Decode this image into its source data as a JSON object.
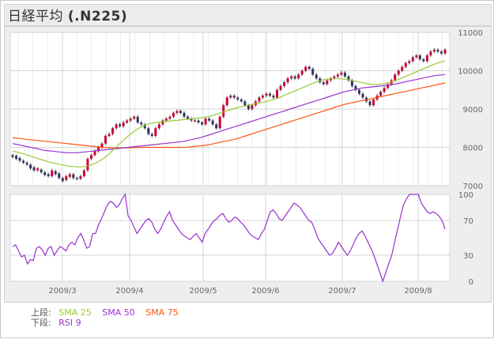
{
  "header": {
    "name": "日経平均",
    "code": "(.N225)"
  },
  "legend": {
    "upper_label": "上段:",
    "lower_label": "下段:",
    "sma25": {
      "label": "SMA 25",
      "color": "#99cc33"
    },
    "sma50": {
      "label": "SMA 50",
      "color": "#9933cc"
    },
    "sma75": {
      "label": "SMA 75",
      "color": "#ff5511"
    },
    "rsi": {
      "label": "RSI 9",
      "color": "#9933cc"
    }
  },
  "colors": {
    "up": "#cc0033",
    "down": "#333366",
    "grid": "#ffffff",
    "plot_bg": "#ffffff"
  },
  "chart_data": [
    {
      "type": "candlestick",
      "panel": "price",
      "x_tick_labels": [
        "2009/3",
        "2009/4",
        "2009/5",
        "2009/6",
        "2009/7",
        "2009/8"
      ],
      "y_tick_labels": [
        "7000",
        "8000",
        "9000",
        "10000",
        "11000"
      ],
      "ylim": [
        7000,
        11000
      ],
      "grid": true,
      "candles": [
        [
          7800,
          7750
        ],
        [
          7780,
          7700
        ],
        [
          7720,
          7650
        ],
        [
          7650,
          7600
        ],
        [
          7600,
          7550
        ],
        [
          7550,
          7450
        ],
        [
          7480,
          7400
        ],
        [
          7400,
          7450
        ],
        [
          7420,
          7350
        ],
        [
          7350,
          7280
        ],
        [
          7300,
          7250
        ],
        [
          7250,
          7400
        ],
        [
          7380,
          7300
        ],
        [
          7320,
          7200
        ],
        [
          7200,
          7120
        ],
        [
          7150,
          7250
        ],
        [
          7230,
          7300
        ],
        [
          7300,
          7200
        ],
        [
          7200,
          7180
        ],
        [
          7180,
          7250
        ],
        [
          7250,
          7400
        ],
        [
          7400,
          7700
        ],
        [
          7700,
          7800
        ],
        [
          7800,
          7900
        ],
        [
          7900,
          8000
        ],
        [
          8000,
          8100
        ],
        [
          8100,
          8300
        ],
        [
          8300,
          8350
        ],
        [
          8350,
          8500
        ],
        [
          8500,
          8600
        ],
        [
          8600,
          8550
        ],
        [
          8550,
          8650
        ],
        [
          8650,
          8700
        ],
        [
          8700,
          8750
        ],
        [
          8750,
          8800
        ],
        [
          8800,
          8650
        ],
        [
          8650,
          8600
        ],
        [
          8600,
          8500
        ],
        [
          8500,
          8350
        ],
        [
          8350,
          8300
        ],
        [
          8300,
          8500
        ],
        [
          8500,
          8600
        ],
        [
          8600,
          8700
        ],
        [
          8700,
          8750
        ],
        [
          8750,
          8800
        ],
        [
          8800,
          8900
        ],
        [
          8900,
          8950
        ],
        [
          8950,
          8900
        ],
        [
          8900,
          8800
        ],
        [
          8800,
          8750
        ],
        [
          8750,
          8700
        ],
        [
          8700,
          8700
        ],
        [
          8700,
          8650
        ],
        [
          8650,
          8600
        ],
        [
          8600,
          8750
        ],
        [
          8750,
          8700
        ],
        [
          8700,
          8600
        ],
        [
          8600,
          8500
        ],
        [
          8500,
          8800
        ],
        [
          8800,
          9100
        ],
        [
          9100,
          9300
        ],
        [
          9300,
          9350
        ],
        [
          9350,
          9300
        ],
        [
          9300,
          9250
        ],
        [
          9250,
          9200
        ],
        [
          9200,
          9100
        ],
        [
          9100,
          9000
        ],
        [
          9000,
          9100
        ],
        [
          9100,
          9200
        ],
        [
          9200,
          9300
        ],
        [
          9300,
          9350
        ],
        [
          9350,
          9400
        ],
        [
          9400,
          9350
        ],
        [
          9350,
          9300
        ],
        [
          9300,
          9500
        ],
        [
          9500,
          9600
        ],
        [
          9600,
          9700
        ],
        [
          9700,
          9800
        ],
        [
          9800,
          9850
        ],
        [
          9850,
          9800
        ],
        [
          9800,
          9900
        ],
        [
          9900,
          10000
        ],
        [
          10000,
          10100
        ],
        [
          10100,
          10050
        ],
        [
          10050,
          9900
        ],
        [
          9900,
          9800
        ],
        [
          9800,
          9700
        ],
        [
          9700,
          9650
        ],
        [
          9650,
          9750
        ],
        [
          9750,
          9800
        ],
        [
          9800,
          9850
        ],
        [
          9850,
          9900
        ],
        [
          9900,
          9950
        ],
        [
          9950,
          9850
        ],
        [
          9850,
          9750
        ],
        [
          9750,
          9600
        ],
        [
          9600,
          9500
        ],
        [
          9500,
          9400
        ],
        [
          9400,
          9300
        ],
        [
          9300,
          9200
        ],
        [
          9200,
          9100
        ],
        [
          9100,
          9250
        ],
        [
          9250,
          9350
        ],
        [
          9350,
          9450
        ],
        [
          9450,
          9550
        ],
        [
          9550,
          9650
        ],
        [
          9650,
          9750
        ],
        [
          9750,
          9900
        ],
        [
          9900,
          10000
        ],
        [
          10000,
          10100
        ],
        [
          10100,
          10200
        ],
        [
          10200,
          10250
        ],
        [
          10250,
          10350
        ],
        [
          10350,
          10400
        ],
        [
          10400,
          10300
        ],
        [
          10300,
          10250
        ],
        [
          10250,
          10400
        ],
        [
          10400,
          10500
        ],
        [
          10500,
          10550
        ],
        [
          10550,
          10500
        ],
        [
          10500,
          10450
        ],
        [
          10450,
          10550
        ]
      ],
      "sma25": [
        7900,
        7880,
        7860,
        7830,
        7800,
        7770,
        7740,
        7710,
        7680,
        7650,
        7620,
        7600,
        7580,
        7560,
        7540,
        7520,
        7510,
        7500,
        7490,
        7490,
        7500,
        7520,
        7550,
        7590,
        7640,
        7700,
        7770,
        7850,
        7940,
        8030,
        8120,
        8210,
        8290,
        8370,
        8440,
        8500,
        8550,
        8590,
        8620,
        8640,
        8650,
        8660,
        8670,
        8680,
        8690,
        8700,
        8710,
        8720,
        8730,
        8740,
        8750,
        8760,
        8770,
        8780,
        8800,
        8820,
        8850,
        8880,
        8910,
        8940,
        8970,
        9000,
        9030,
        9050,
        9070,
        9090,
        9110,
        9130,
        9150,
        9170,
        9190,
        9210,
        9240,
        9270,
        9300,
        9340,
        9380,
        9420,
        9460,
        9500,
        9540,
        9580,
        9620,
        9660,
        9700,
        9730,
        9760,
        9780,
        9790,
        9800,
        9800,
        9790,
        9780,
        9770,
        9750,
        9730,
        9710,
        9690,
        9670,
        9650,
        9640,
        9640,
        9650,
        9660,
        9680,
        9700,
        9730,
        9770,
        9810,
        9850,
        9890,
        9930,
        9970,
        10010,
        10050,
        10090,
        10130,
        10170,
        10200,
        10230,
        10260
      ],
      "sma50": [
        8100,
        8080,
        8060,
        8040,
        8020,
        8000,
        7980,
        7960,
        7940,
        7920,
        7910,
        7900,
        7890,
        7880,
        7870,
        7860,
        7860,
        7860,
        7860,
        7870,
        7880,
        7890,
        7900,
        7910,
        7920,
        7930,
        7940,
        7950,
        7960,
        7970,
        7980,
        7990,
        8000,
        8010,
        8020,
        8030,
        8040,
        8050,
        8060,
        8070,
        8080,
        8090,
        8100,
        8110,
        8120,
        8130,
        8140,
        8150,
        8170,
        8190,
        8210,
        8230,
        8250,
        8280,
        8310,
        8340,
        8370,
        8400,
        8430,
        8460,
        8490,
        8520,
        8550,
        8580,
        8610,
        8640,
        8670,
        8700,
        8730,
        8760,
        8790,
        8820,
        8850,
        8880,
        8910,
        8940,
        8970,
        9000,
        9030,
        9060,
        9090,
        9120,
        9150,
        9180,
        9210,
        9240,
        9270,
        9300,
        9330,
        9360,
        9390,
        9420,
        9450,
        9470,
        9490,
        9510,
        9530,
        9550,
        9560,
        9570,
        9580,
        9590,
        9600,
        9610,
        9620,
        9630,
        9650,
        9670,
        9690,
        9710,
        9730,
        9750,
        9770,
        9790,
        9810,
        9830,
        9850,
        9870,
        9880,
        9890,
        9900
      ],
      "sma75": [
        8250,
        8240,
        8230,
        8220,
        8210,
        8200,
        8190,
        8180,
        8170,
        8160,
        8150,
        8140,
        8130,
        8120,
        8110,
        8100,
        8090,
        8080,
        8070,
        8060,
        8050,
        8040,
        8030,
        8020,
        8010,
        8000,
        7995,
        7990,
        7990,
        7990,
        7990,
        7990,
        7990,
        7990,
        7995,
        8000,
        8000,
        8000,
        8000,
        8000,
        8000,
        8000,
        8000,
        8000,
        8000,
        8000,
        8000,
        8000,
        8000,
        8010,
        8020,
        8030,
        8040,
        8050,
        8060,
        8080,
        8100,
        8120,
        8140,
        8160,
        8180,
        8200,
        8220,
        8250,
        8280,
        8310,
        8340,
        8370,
        8400,
        8430,
        8460,
        8490,
        8520,
        8550,
        8580,
        8610,
        8640,
        8670,
        8700,
        8730,
        8760,
        8790,
        8820,
        8850,
        8880,
        8910,
        8940,
        8970,
        9000,
        9030,
        9060,
        9090,
        9120,
        9140,
        9160,
        9180,
        9200,
        9220,
        9240,
        9260,
        9280,
        9300,
        9320,
        9340,
        9360,
        9380,
        9400,
        9420,
        9440,
        9460,
        9480,
        9500,
        9520,
        9540,
        9560,
        9580,
        9600,
        9620,
        9640,
        9660,
        9680
      ]
    },
    {
      "type": "line",
      "panel": "rsi",
      "y_tick_labels": [
        "0",
        "30",
        "70",
        "100"
      ],
      "ylim": [
        0,
        100
      ],
      "grid": true,
      "series": [
        {
          "name": "RSI 9",
          "values": [
            40,
            42,
            35,
            28,
            30,
            20,
            25,
            24,
            38,
            40,
            36,
            30,
            38,
            40,
            30,
            35,
            40,
            38,
            35,
            42,
            45,
            42,
            50,
            55,
            48,
            38,
            40,
            55,
            55,
            65,
            72,
            80,
            88,
            92,
            90,
            85,
            88,
            95,
            100,
            75,
            70,
            62,
            55,
            60,
            65,
            70,
            72,
            68,
            60,
            55,
            60,
            68,
            75,
            80,
            70,
            65,
            60,
            55,
            52,
            50,
            48,
            52,
            55,
            50,
            45,
            55,
            60,
            65,
            70,
            72,
            76,
            78,
            72,
            68,
            70,
            74,
            72,
            68,
            65,
            60,
            55,
            52,
            50,
            48,
            55,
            60,
            70,
            80,
            82,
            78,
            72,
            70,
            75,
            80,
            85,
            90,
            88,
            85,
            80,
            75,
            70,
            68,
            60,
            50,
            45,
            40,
            35,
            30,
            32,
            38,
            45,
            40,
            35,
            30,
            35,
            42,
            50,
            55,
            58,
            52,
            45,
            38,
            30,
            20,
            10,
            0,
            10,
            20,
            30,
            45,
            60,
            75,
            88,
            95,
            100,
            100,
            100,
            100,
            90,
            85,
            80,
            78,
            80,
            78,
            75,
            70,
            60
          ]
        }
      ]
    }
  ]
}
